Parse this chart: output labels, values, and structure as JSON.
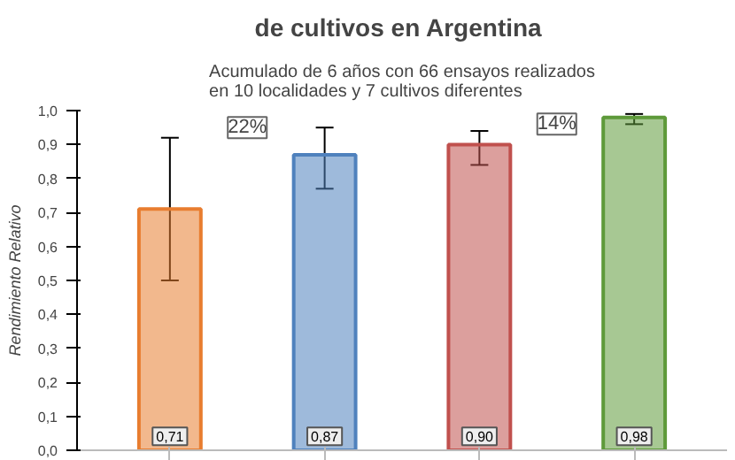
{
  "chart_data": {
    "type": "bar",
    "title": "de cultivos  en Argentina",
    "subtitle": "Acumulado de 6 años con 66 ensayos realizados en 10 localidades y 7 cultivos diferentes",
    "ylabel": "Rendimiento Relativo",
    "categories": [
      null,
      null,
      null,
      null
    ],
    "values": [
      0.71,
      0.87,
      0.9,
      0.98
    ],
    "colors": [
      "#e87d2f",
      "#4f81bd",
      "#c0504d",
      "#5e9a3a"
    ],
    "errors": [
      [
        0.5,
        0.92
      ],
      [
        0.77,
        0.95
      ],
      [
        0.84,
        0.94
      ],
      [
        0.96,
        0.99
      ]
    ],
    "value_labels": [
      "0,71",
      "0,87",
      "0,90",
      "0,98"
    ],
    "annotations": [
      "22%",
      "14%"
    ],
    "ylim": [
      0,
      1.0
    ],
    "yticks": [
      {
        "value": 0,
        "label": "0,0"
      },
      {
        "value": 0.1,
        "label": "0,1"
      },
      {
        "value": 0.2,
        "label": "0,2"
      },
      {
        "value": 0.3,
        "label": "0,3"
      },
      {
        "value": 0.4,
        "label": "0,4"
      },
      {
        "value": 0.5,
        "label": "0,5"
      },
      {
        "value": 0.6,
        "label": "0,6"
      },
      {
        "value": 0.7,
        "label": "0,7"
      },
      {
        "value": 0.8,
        "label": "0,8"
      },
      {
        "value": 0.9,
        "label": "0,9"
      },
      {
        "value": 1.0,
        "label": "1,0"
      }
    ],
    "grid": false
  }
}
